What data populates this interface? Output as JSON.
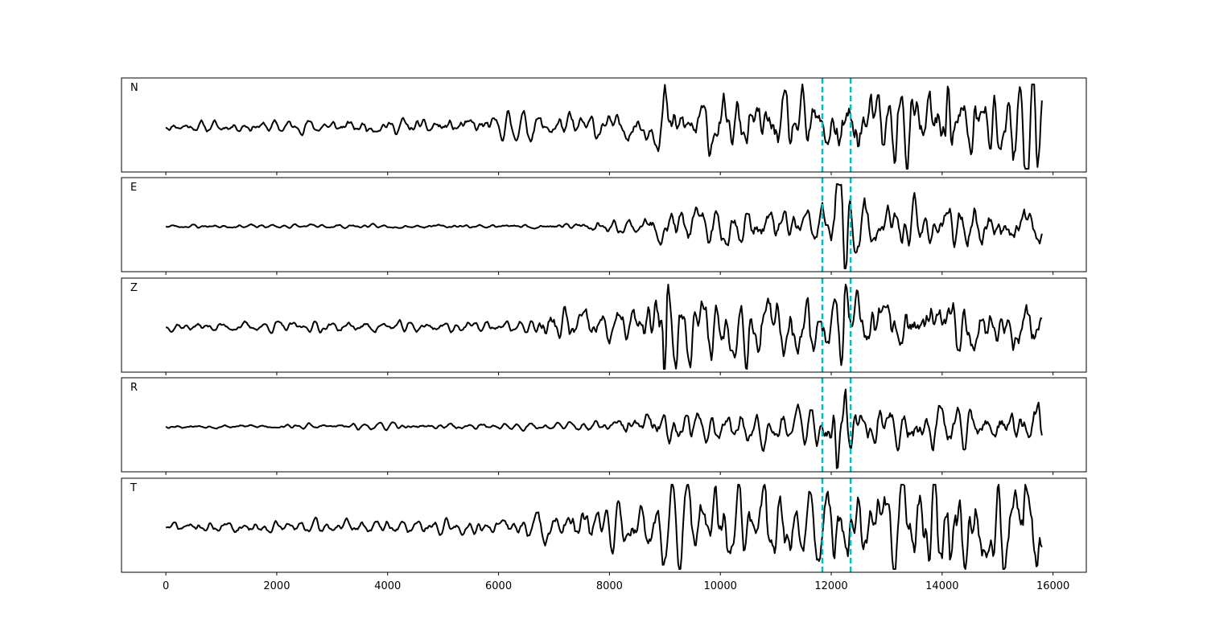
{
  "chart_data": {
    "type": "line",
    "xlim": [
      -800,
      16600
    ],
    "x_ticks": [
      0,
      2000,
      4000,
      6000,
      8000,
      10000,
      12000,
      14000,
      16000
    ],
    "x_tick_labels": [
      "0",
      "2000",
      "4000",
      "6000",
      "8000",
      "10000",
      "12000",
      "14000",
      "16000"
    ],
    "x_range": [
      0,
      15800
    ],
    "y_ticks_shown": false,
    "grid": false,
    "trace_color": "#000000",
    "marker_color": "#00bfbf",
    "markers": [
      11840,
      12350
    ],
    "panels": [
      {
        "label": "N",
        "seed": 11,
        "profile": [
          [
            0,
            0.07
          ],
          [
            4500,
            0.12
          ],
          [
            7000,
            0.2
          ],
          [
            8500,
            0.22
          ],
          [
            9000,
            0.42
          ],
          [
            11800,
            0.48
          ],
          [
            12400,
            0.6
          ],
          [
            14000,
            0.62
          ],
          [
            15800,
            0.78
          ]
        ],
        "spikes": [
          [
            9000,
            0.35
          ],
          [
            14100,
            1.0
          ],
          [
            15550,
            -0.95
          ],
          [
            15650,
            0.75
          ],
          [
            12150,
            -0.6
          ]
        ]
      },
      {
        "label": "E",
        "seed": 23,
        "profile": [
          [
            0,
            0.03
          ],
          [
            6500,
            0.03
          ],
          [
            7000,
            0.06
          ],
          [
            8500,
            0.12
          ],
          [
            9000,
            0.3
          ],
          [
            11800,
            0.3
          ],
          [
            12000,
            0.45
          ],
          [
            12500,
            0.45
          ],
          [
            13000,
            0.35
          ],
          [
            15800,
            0.28
          ]
        ],
        "spikes": [
          [
            12100,
            1.0
          ],
          [
            12250,
            -0.9
          ],
          [
            12200,
            0.6
          ]
        ]
      },
      {
        "label": "Z",
        "seed": 37,
        "profile": [
          [
            0,
            0.07
          ],
          [
            6500,
            0.09
          ],
          [
            7000,
            0.3
          ],
          [
            8500,
            0.3
          ],
          [
            9000,
            0.65
          ],
          [
            9500,
            0.5
          ],
          [
            11800,
            0.48
          ],
          [
            12400,
            0.45
          ],
          [
            15800,
            0.42
          ]
        ],
        "spikes": [
          [
            9000,
            -1.0
          ],
          [
            8950,
            0.75
          ],
          [
            9050,
            0.8
          ],
          [
            12250,
            0.85
          ],
          [
            12200,
            -0.7
          ]
        ]
      },
      {
        "label": "R",
        "seed": 53,
        "profile": [
          [
            0,
            0.03
          ],
          [
            7000,
            0.05
          ],
          [
            8000,
            0.1
          ],
          [
            8800,
            0.25
          ],
          [
            11800,
            0.25
          ],
          [
            12000,
            0.45
          ],
          [
            12500,
            0.35
          ],
          [
            15800,
            0.3
          ]
        ],
        "spikes": [
          [
            12250,
            1.0
          ],
          [
            12100,
            -1.0
          ],
          [
            15750,
            0.3
          ]
        ]
      },
      {
        "label": "T",
        "seed": 71,
        "profile": [
          [
            0,
            0.08
          ],
          [
            6000,
            0.12
          ],
          [
            7000,
            0.25
          ],
          [
            8500,
            0.32
          ],
          [
            9000,
            0.5
          ],
          [
            11800,
            0.55
          ],
          [
            12400,
            0.62
          ],
          [
            15800,
            0.72
          ]
        ],
        "spikes": [
          [
            14150,
            -1.0
          ],
          [
            15500,
            0.95
          ],
          [
            15700,
            -0.8
          ],
          [
            10800,
            0.8
          ]
        ]
      }
    ]
  }
}
